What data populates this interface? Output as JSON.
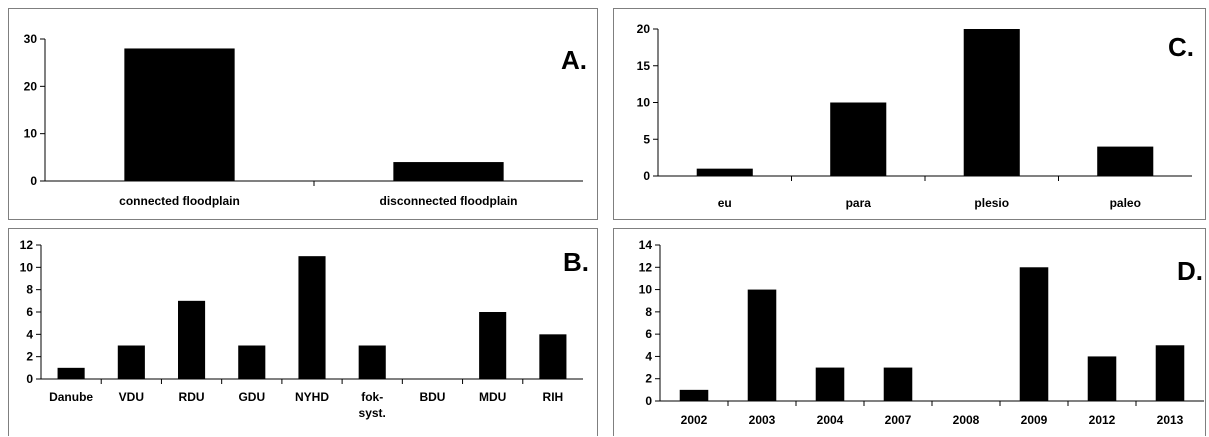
{
  "chart_data": [
    {
      "id": "A",
      "type": "bar",
      "panel_label": "A.",
      "categories": [
        "connected floodplain",
        "disconnected floodplain"
      ],
      "values": [
        28,
        4
      ],
      "yticks": [
        0,
        10,
        20,
        30
      ],
      "ylim": [
        0,
        30
      ],
      "grid": false,
      "color": "#000000"
    },
    {
      "id": "C",
      "type": "bar",
      "panel_label": "C.",
      "categories": [
        "eu",
        "para",
        "plesio",
        "paleo"
      ],
      "values": [
        1,
        10,
        20,
        4
      ],
      "yticks": [
        0,
        5,
        10,
        15,
        20
      ],
      "ylim": [
        0,
        20
      ],
      "grid": false,
      "color": "#000000"
    },
    {
      "id": "B",
      "type": "bar",
      "panel_label": "B.",
      "categories": [
        "Danube",
        "VDU",
        "RDU",
        "GDU",
        "NYHD",
        "fok-syst.",
        "BDU",
        "MDU",
        "RIH"
      ],
      "values": [
        1,
        3,
        7,
        3,
        11,
        3,
        0,
        6,
        4
      ],
      "yticks": [
        0,
        2,
        4,
        6,
        8,
        10,
        12
      ],
      "ylim": [
        0,
        12
      ],
      "grid": false,
      "color": "#000000"
    },
    {
      "id": "D",
      "type": "bar",
      "panel_label": "D.",
      "categories": [
        "2002",
        "2003",
        "2004",
        "2007",
        "2008",
        "2009",
        "2012",
        "2013"
      ],
      "values": [
        1,
        10,
        3,
        3,
        0,
        12,
        4,
        5
      ],
      "yticks": [
        0,
        2,
        4,
        6,
        8,
        10,
        12,
        14
      ],
      "ylim": [
        0,
        14
      ],
      "grid": false,
      "color": "#000000"
    }
  ]
}
